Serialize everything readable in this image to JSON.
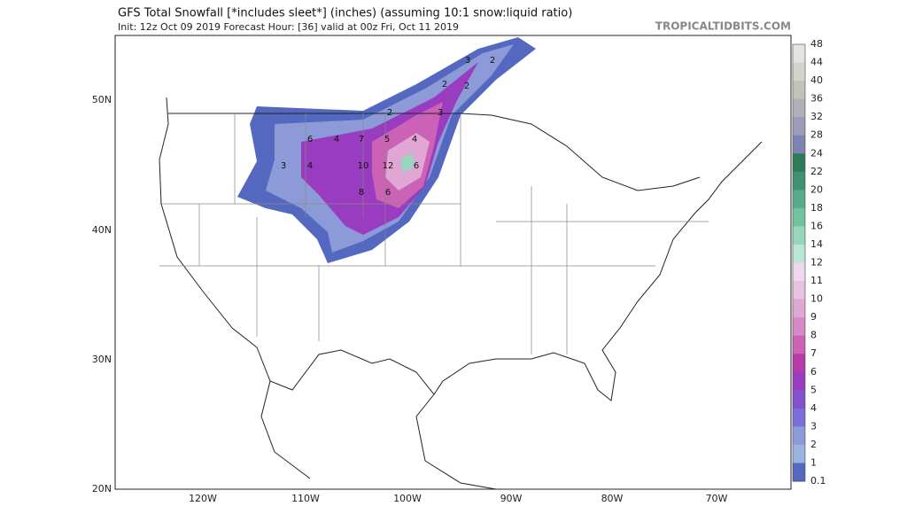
{
  "header": {
    "title": "GFS Total Snowfall [*includes sleet*] (inches) (assuming 10:1 snow:liquid ratio)",
    "subtitle": "Init: 12z Oct 09 2019   Forecast Hour: [36]   valid at 00z Fri, Oct 11 2019",
    "brand": "TROPICALTIDBITS.COM"
  },
  "map": {
    "lat_labels": [
      "50N",
      "40N",
      "30N",
      "20N"
    ],
    "lon_labels": [
      "120W",
      "110W",
      "100W",
      "90W",
      "80W",
      "70W"
    ],
    "contour_labels": [
      3,
      2,
      2,
      2,
      2,
      3,
      6,
      4,
      7,
      5,
      4,
      10,
      12,
      6,
      4,
      8,
      6,
      3
    ]
  },
  "colorbar": {
    "ticks": [
      48,
      44,
      40,
      36,
      32,
      28,
      24,
      22,
      20,
      18,
      16,
      14,
      12,
      11,
      10,
      9,
      8,
      7,
      6,
      5,
      4,
      3,
      2,
      1,
      0.1
    ],
    "colors": [
      "#e4e4e0",
      "#d4d4cc",
      "#c2c2b8",
      "#b0b0b8",
      "#9a9cb8",
      "#7e84b2",
      "#2f7a58",
      "#3e9270",
      "#56ac88",
      "#72c2a0",
      "#96d6bc",
      "#bce6d4",
      "#f0d8ec",
      "#e8c0e0",
      "#e0a6d4",
      "#d888c6",
      "#cc62b6",
      "#b83aa8",
      "#9a3cc0",
      "#8450d0",
      "#7a6ed8",
      "#8c9ad8",
      "#9ab4e0",
      "#5468c0"
    ]
  }
}
